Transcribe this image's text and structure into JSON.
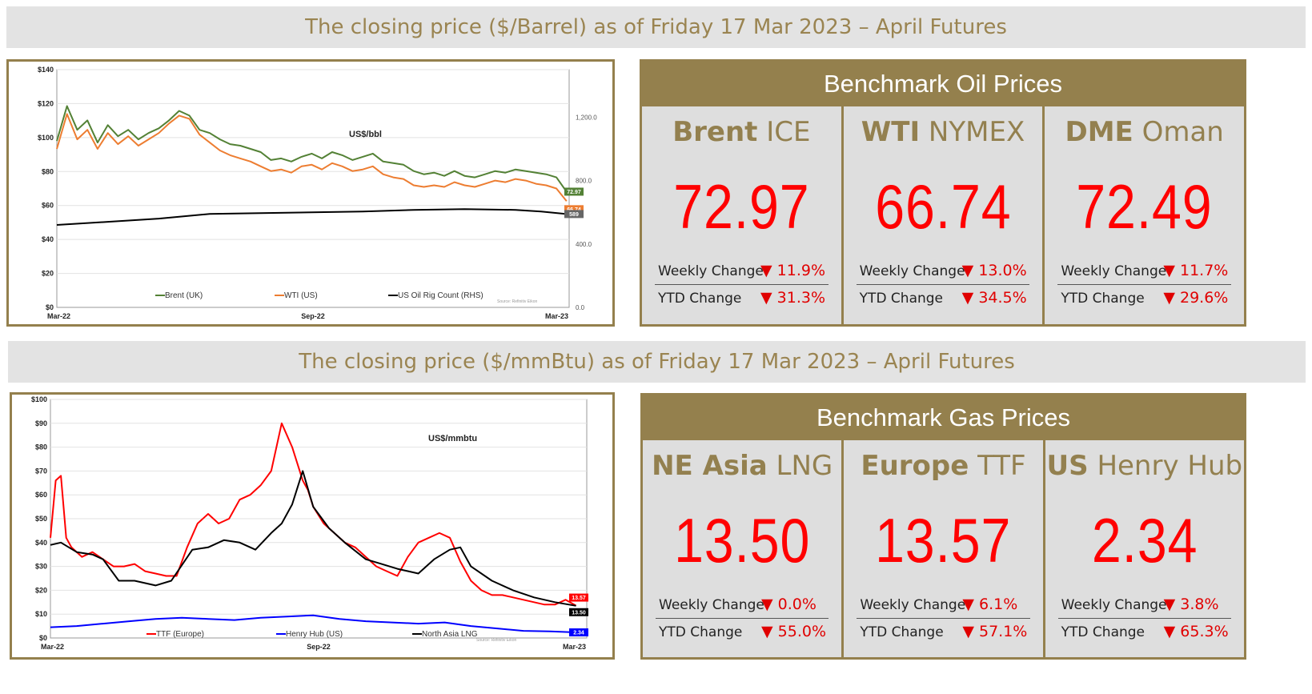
{
  "oil_banner": "The closing price ($/Barrel) as of Friday 17 Mar 2023 – April Futures",
  "gas_banner": "The closing price ($/mmBtu) as of Friday 17 Mar 2023 – April Futures",
  "oil_panel": {
    "title": "Benchmark Oil Prices",
    "cards": [
      {
        "bold": "Brent",
        "rest": " ICE",
        "price": "72.97",
        "weekly_label": "Weekly Change",
        "weekly": "▼ 11.9%",
        "ytd_label": "YTD Change",
        "ytd": "▼ 31.3%"
      },
      {
        "bold": "WTI",
        "rest": " NYMEX",
        "price": "66.74",
        "weekly_label": "Weekly Change",
        "weekly": "▼ 13.0%",
        "ytd_label": "YTD Change",
        "ytd": "▼ 34.5%"
      },
      {
        "bold": "DME",
        "rest": " Oman",
        "price": "72.49",
        "weekly_label": "Weekly Change",
        "weekly": "▼ 11.7%",
        "ytd_label": "YTD Change",
        "ytd": "▼ 29.6%"
      }
    ]
  },
  "gas_panel": {
    "title": "Benchmark Gas Prices",
    "cards": [
      {
        "bold": "NE Asia",
        "rest": " LNG",
        "price": "13.50",
        "weekly_label": "Weekly Change",
        "weekly": "▼ 0.0%",
        "ytd_label": "YTD Change",
        "ytd": "▼ 55.0%"
      },
      {
        "bold": "Europe",
        "rest": " TTF",
        "price": "13.57",
        "weekly_label": "Weekly Change",
        "weekly": "▼ 6.1%",
        "ytd_label": "YTD Change",
        "ytd": "▼ 57.1%"
      },
      {
        "bold": "US",
        "rest": " Henry Hub",
        "price": "2.34",
        "weekly_label": "Weekly Change",
        "weekly": "▼ 3.8%",
        "ytd_label": "YTD Change",
        "ytd": "▼ 65.3%"
      }
    ]
  },
  "chart_data": [
    {
      "type": "line",
      "unit_label": "US$/bbl",
      "y_ticks": [
        "$0",
        "$20",
        "$40",
        "$60",
        "$80",
        "$100",
        "$120",
        "$140"
      ],
      "ylim": [
        0,
        150
      ],
      "y2_ticks": [
        "0.0",
        "400.0",
        "800.0",
        "1,200.0"
      ],
      "y2lim": [
        0,
        1500
      ],
      "x_ticks": [
        "Mar-22",
        "Sep-22",
        "Mar-23"
      ],
      "x_tick_positions": [
        0,
        0.5,
        1
      ],
      "grid": true,
      "legend_position": "bottom",
      "source": "Source: Refinitiv Eikon",
      "series": [
        {
          "name": "Brent (UK)",
          "axis": "left",
          "color": "#538135",
          "end_label": "72.97",
          "x": [
            0,
            0.02,
            0.04,
            0.06,
            0.08,
            0.1,
            0.12,
            0.14,
            0.16,
            0.18,
            0.2,
            0.22,
            0.24,
            0.26,
            0.28,
            0.3,
            0.32,
            0.34,
            0.36,
            0.38,
            0.4,
            0.42,
            0.44,
            0.46,
            0.48,
            0.5,
            0.52,
            0.54,
            0.56,
            0.58,
            0.6,
            0.62,
            0.64,
            0.66,
            0.68,
            0.7,
            0.72,
            0.74,
            0.76,
            0.78,
            0.8,
            0.82,
            0.84,
            0.86,
            0.88,
            0.9,
            0.92,
            0.94,
            0.96,
            0.98,
            1.0
          ],
          "values": [
            105,
            127,
            112,
            118,
            104,
            115,
            108,
            112,
            106,
            110,
            113,
            118,
            124,
            121,
            112,
            110,
            106,
            103,
            102,
            100,
            98,
            93,
            94,
            92,
            95,
            97,
            94,
            98,
            96,
            93,
            95,
            97,
            92,
            91,
            90,
            86,
            84,
            85,
            83,
            86,
            83,
            82,
            84,
            86,
            85,
            87,
            86,
            85,
            84,
            82,
            73
          ]
        },
        {
          "name": "WTI (US)",
          "axis": "left",
          "color": "#ed7d31",
          "end_label": "66.74",
          "x": [
            0,
            0.02,
            0.04,
            0.06,
            0.08,
            0.1,
            0.12,
            0.14,
            0.16,
            0.18,
            0.2,
            0.22,
            0.24,
            0.26,
            0.28,
            0.3,
            0.32,
            0.34,
            0.36,
            0.38,
            0.4,
            0.42,
            0.44,
            0.46,
            0.48,
            0.5,
            0.52,
            0.54,
            0.56,
            0.58,
            0.6,
            0.62,
            0.64,
            0.66,
            0.68,
            0.7,
            0.72,
            0.74,
            0.76,
            0.78,
            0.8,
            0.82,
            0.84,
            0.86,
            0.88,
            0.9,
            0.92,
            0.94,
            0.96,
            0.98,
            1.0
          ],
          "values": [
            100,
            122,
            106,
            112,
            100,
            110,
            103,
            108,
            102,
            106,
            110,
            116,
            121,
            119,
            109,
            104,
            99,
            96,
            94,
            92,
            89,
            86,
            87,
            85,
            89,
            90,
            87,
            91,
            89,
            86,
            87,
            89,
            84,
            82,
            81,
            77,
            76,
            77,
            76,
            79,
            77,
            76,
            78,
            80,
            79,
            81,
            80,
            78,
            77,
            75,
            67
          ]
        },
        {
          "name": "US Oil Rig Count (RHS)",
          "axis": "right",
          "color": "#000000",
          "end_label": "589",
          "x": [
            0,
            0.1,
            0.2,
            0.3,
            0.4,
            0.5,
            0.6,
            0.7,
            0.8,
            0.9,
            0.95,
            1.0
          ],
          "values": [
            520,
            540,
            560,
            590,
            595,
            600,
            605,
            615,
            620,
            615,
            605,
            589
          ]
        }
      ]
    },
    {
      "type": "line",
      "unit_label": "US$/mmbtu",
      "y_ticks": [
        "$0",
        "$10",
        "$20",
        "$30",
        "$40",
        "$50",
        "$60",
        "$70",
        "$80",
        "$90",
        "$100"
      ],
      "ylim": [
        0,
        100
      ],
      "x_ticks": [
        "Mar-22",
        "Sep-22",
        "Mar-23"
      ],
      "x_tick_positions": [
        0,
        0.5,
        1
      ],
      "grid": true,
      "legend_position": "bottom",
      "source": "Source: Refinitiv Eikon",
      "series": [
        {
          "name": "TTF (Europe)",
          "color": "#ff0000",
          "end_label": "13.57",
          "x": [
            0,
            0.01,
            0.02,
            0.03,
            0.04,
            0.06,
            0.08,
            0.1,
            0.12,
            0.14,
            0.16,
            0.18,
            0.2,
            0.22,
            0.24,
            0.26,
            0.28,
            0.3,
            0.32,
            0.34,
            0.36,
            0.38,
            0.4,
            0.42,
            0.44,
            0.46,
            0.48,
            0.49,
            0.5,
            0.52,
            0.54,
            0.56,
            0.58,
            0.6,
            0.62,
            0.64,
            0.66,
            0.68,
            0.7,
            0.72,
            0.74,
            0.76,
            0.78,
            0.8,
            0.82,
            0.84,
            0.86,
            0.88,
            0.9,
            0.92,
            0.94,
            0.96,
            0.98,
            1.0
          ],
          "values": [
            42,
            66,
            68,
            42,
            38,
            34,
            36,
            33,
            30,
            30,
            31,
            28,
            27,
            26,
            26,
            38,
            48,
            52,
            48,
            50,
            58,
            60,
            64,
            70,
            90,
            80,
            66,
            62,
            55,
            48,
            44,
            40,
            38,
            34,
            30,
            28,
            26,
            34,
            40,
            42,
            44,
            42,
            32,
            24,
            20,
            18,
            18,
            17,
            16,
            15,
            14,
            14,
            16,
            13.57
          ]
        },
        {
          "name": "Henry Hub (US)",
          "color": "#0000ff",
          "end_label": "2.34",
          "x": [
            0,
            0.05,
            0.1,
            0.15,
            0.2,
            0.25,
            0.3,
            0.35,
            0.4,
            0.45,
            0.5,
            0.55,
            0.6,
            0.65,
            0.7,
            0.75,
            0.8,
            0.85,
            0.9,
            0.95,
            1.0
          ],
          "values": [
            4.5,
            5,
            6,
            7,
            8,
            8.5,
            8,
            7.5,
            8.5,
            9,
            9.5,
            8,
            7,
            6.5,
            6,
            6.5,
            5,
            4,
            3,
            2.8,
            2.34
          ]
        },
        {
          "name": "North Asia LNG",
          "color": "#000000",
          "end_label": "13.50",
          "x": [
            0,
            0.02,
            0.05,
            0.08,
            0.1,
            0.13,
            0.16,
            0.2,
            0.23,
            0.27,
            0.3,
            0.33,
            0.36,
            0.39,
            0.42,
            0.44,
            0.46,
            0.48,
            0.5,
            0.53,
            0.56,
            0.6,
            0.63,
            0.66,
            0.7,
            0.73,
            0.76,
            0.78,
            0.8,
            0.84,
            0.88,
            0.92,
            0.96,
            1.0
          ],
          "values": [
            39,
            40,
            36,
            35,
            33,
            24,
            24,
            22,
            24,
            37,
            38,
            41,
            40,
            37,
            44,
            48,
            56,
            70,
            55,
            46,
            40,
            33,
            31,
            29,
            27,
            33,
            37,
            38,
            30,
            24,
            20,
            17,
            15,
            13.5
          ]
        }
      ]
    }
  ]
}
